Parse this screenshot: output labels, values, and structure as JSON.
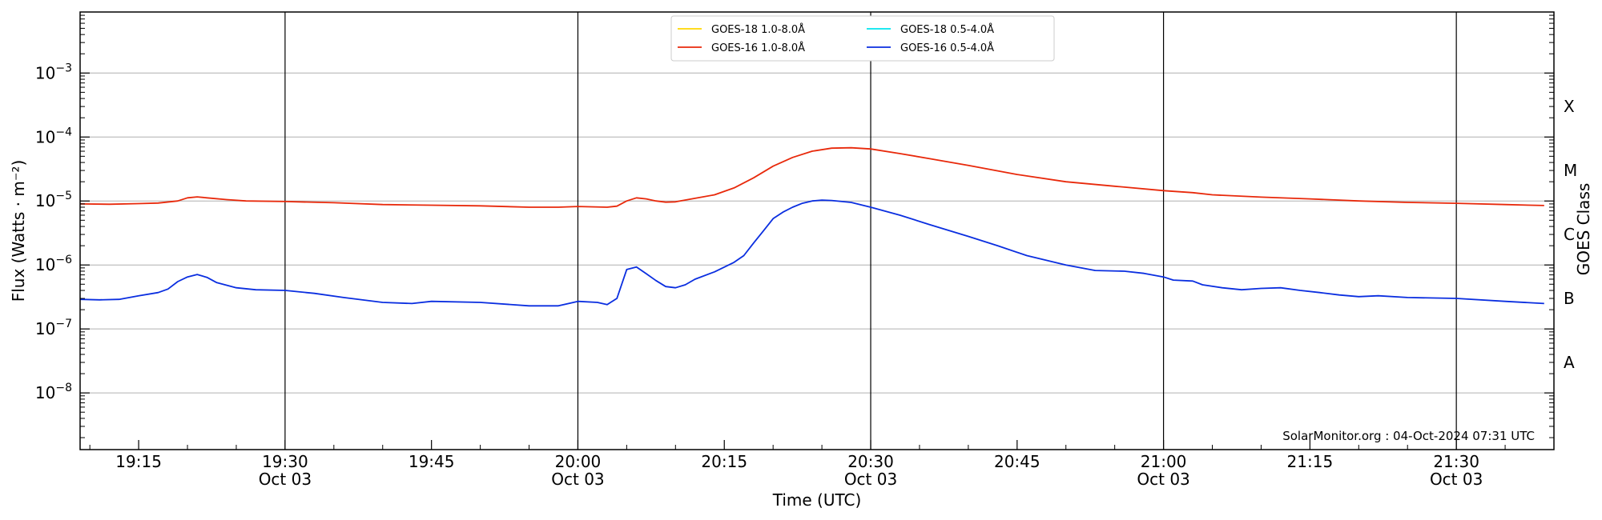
{
  "chart_data": {
    "type": "line",
    "xlabel": "Time (UTC)",
    "ylabel": "Flux (Watts · m⁻²)",
    "ylabel_right": "GOES Class",
    "yscale": "log",
    "ylim": [
      1.3e-09,
      0.009
    ],
    "xlim": [
      "2024-10-03 19:09",
      "2024-10-03 21:40"
    ],
    "grid": "horizontal at decades; vertical lines at half hours",
    "legend_position": "top-center",
    "credit": "SolarMonitor.org : 04-Oct-2024 07:31 UTC",
    "y_ticks": [
      {
        "value": 1e-08,
        "base": "10",
        "exp": "−8"
      },
      {
        "value": 1e-07,
        "base": "10",
        "exp": "−7"
      },
      {
        "value": 1e-06,
        "base": "10",
        "exp": "−6"
      },
      {
        "value": 1e-05,
        "base": "10",
        "exp": "−5"
      },
      {
        "value": 0.0001,
        "base": "10",
        "exp": "−4"
      },
      {
        "value": 0.001,
        "base": "10",
        "exp": "−3"
      }
    ],
    "x_ticks": [
      {
        "time": "19:15",
        "label": "19:15",
        "date": ""
      },
      {
        "time": "19:30",
        "label": "19:30",
        "date": "Oct 03"
      },
      {
        "time": "19:45",
        "label": "19:45",
        "date": ""
      },
      {
        "time": "20:00",
        "label": "20:00",
        "date": "Oct 03"
      },
      {
        "time": "20:15",
        "label": "20:15",
        "date": ""
      },
      {
        "time": "20:30",
        "label": "20:30",
        "date": "Oct 03"
      },
      {
        "time": "20:45",
        "label": "20:45",
        "date": ""
      },
      {
        "time": "21:00",
        "label": "21:00",
        "date": "Oct 03"
      },
      {
        "time": "21:15",
        "label": "21:15",
        "date": ""
      },
      {
        "time": "21:30",
        "label": "21:30",
        "date": "Oct 03"
      }
    ],
    "class_labels": [
      {
        "label": "A",
        "value": 3e-08
      },
      {
        "label": "B",
        "value": 3e-07
      },
      {
        "label": "C",
        "value": 3e-06
      },
      {
        "label": "M",
        "value": 3e-05
      },
      {
        "label": "X",
        "value": 0.0003
      }
    ],
    "series": [
      {
        "name": "GOES-18 1.0-8.0Å",
        "color": "#ffd700",
        "points": []
      },
      {
        "name": "GOES-18 0.5-4.0Å",
        "color": "#00e5ee",
        "points": []
      },
      {
        "name": "GOES-16 1.0-8.0Å",
        "color": "#e8290b",
        "points": [
          [
            "19:09",
            9e-06
          ],
          [
            "19:12",
            8.9e-06
          ],
          [
            "19:15",
            9.1e-06
          ],
          [
            "19:17",
            9.3e-06
          ],
          [
            "19:19",
            1e-05
          ],
          [
            "19:20",
            1.12e-05
          ],
          [
            "19:21",
            1.16e-05
          ],
          [
            "19:22",
            1.12e-05
          ],
          [
            "19:24",
            1.05e-05
          ],
          [
            "19:26",
            1e-05
          ],
          [
            "19:30",
            9.8e-06
          ],
          [
            "19:35",
            9.4e-06
          ],
          [
            "19:40",
            8.8e-06
          ],
          [
            "19:45",
            8.6e-06
          ],
          [
            "19:50",
            8.4e-06
          ],
          [
            "19:55",
            8e-06
          ],
          [
            "19:58",
            8e-06
          ],
          [
            "20:00",
            8.2e-06
          ],
          [
            "20:03",
            8e-06
          ],
          [
            "20:04",
            8.3e-06
          ],
          [
            "20:05",
            1e-05
          ],
          [
            "20:06",
            1.12e-05
          ],
          [
            "20:07",
            1.08e-05
          ],
          [
            "20:08",
            1e-05
          ],
          [
            "20:09",
            9.6e-06
          ],
          [
            "20:10",
            9.7e-06
          ],
          [
            "20:12",
            1.1e-05
          ],
          [
            "20:14",
            1.25e-05
          ],
          [
            "20:16",
            1.6e-05
          ],
          [
            "20:18",
            2.3e-05
          ],
          [
            "20:20",
            3.5e-05
          ],
          [
            "20:22",
            4.8e-05
          ],
          [
            "20:24",
            6e-05
          ],
          [
            "20:26",
            6.7e-05
          ],
          [
            "20:28",
            6.8e-05
          ],
          [
            "20:30",
            6.5e-05
          ],
          [
            "20:33",
            5.5e-05
          ],
          [
            "20:36",
            4.6e-05
          ],
          [
            "20:40",
            3.6e-05
          ],
          [
            "20:45",
            2.6e-05
          ],
          [
            "20:50",
            2e-05
          ],
          [
            "20:55",
            1.7e-05
          ],
          [
            "21:00",
            1.45e-05
          ],
          [
            "21:03",
            1.35e-05
          ],
          [
            "21:05",
            1.25e-05
          ],
          [
            "21:10",
            1.15e-05
          ],
          [
            "21:15",
            1.08e-05
          ],
          [
            "21:20",
            1e-05
          ],
          [
            "21:25",
            9.5e-06
          ],
          [
            "21:30",
            9.2e-06
          ],
          [
            "21:35",
            8.8e-06
          ],
          [
            "21:39",
            8.5e-06
          ]
        ]
      },
      {
        "name": "GOES-16 0.5-4.0Å",
        "color": "#0a2ee0",
        "points": [
          [
            "19:09",
            2.9e-07
          ],
          [
            "19:11",
            2.85e-07
          ],
          [
            "19:13",
            2.9e-07
          ],
          [
            "19:15",
            3.3e-07
          ],
          [
            "19:17",
            3.7e-07
          ],
          [
            "19:18",
            4.2e-07
          ],
          [
            "19:19",
            5.5e-07
          ],
          [
            "19:20",
            6.5e-07
          ],
          [
            "19:21",
            7.1e-07
          ],
          [
            "19:22",
            6.4e-07
          ],
          [
            "19:23",
            5.3e-07
          ],
          [
            "19:25",
            4.4e-07
          ],
          [
            "19:27",
            4.1e-07
          ],
          [
            "19:30",
            4e-07
          ],
          [
            "19:33",
            3.6e-07
          ],
          [
            "19:36",
            3.1e-07
          ],
          [
            "19:40",
            2.6e-07
          ],
          [
            "19:43",
            2.5e-07
          ],
          [
            "19:45",
            2.7e-07
          ],
          [
            "19:50",
            2.6e-07
          ],
          [
            "19:55",
            2.3e-07
          ],
          [
            "19:58",
            2.3e-07
          ],
          [
            "20:00",
            2.7e-07
          ],
          [
            "20:02",
            2.6e-07
          ],
          [
            "20:03",
            2.4e-07
          ],
          [
            "20:04",
            3e-07
          ],
          [
            "20:05",
            8.5e-07
          ],
          [
            "20:06",
            9.3e-07
          ],
          [
            "20:07",
            7.3e-07
          ],
          [
            "20:08",
            5.7e-07
          ],
          [
            "20:09",
            4.6e-07
          ],
          [
            "20:10",
            4.4e-07
          ],
          [
            "20:11",
            4.9e-07
          ],
          [
            "20:12",
            6e-07
          ],
          [
            "20:14",
            7.8e-07
          ],
          [
            "20:16",
            1.1e-06
          ],
          [
            "20:17",
            1.4e-06
          ],
          [
            "20:18",
            2.2e-06
          ],
          [
            "20:19",
            3.4e-06
          ],
          [
            "20:20",
            5.3e-06
          ],
          [
            "20:21",
            6.7e-06
          ],
          [
            "20:22",
            8e-06
          ],
          [
            "20:23",
            9.2e-06
          ],
          [
            "20:24",
            1e-05
          ],
          [
            "20:25",
            1.03e-05
          ],
          [
            "20:26",
            1.02e-05
          ],
          [
            "20:28",
            9.5e-06
          ],
          [
            "20:30",
            8e-06
          ],
          [
            "20:33",
            6e-06
          ],
          [
            "20:36",
            4.3e-06
          ],
          [
            "20:40",
            2.8e-06
          ],
          [
            "20:43",
            2e-06
          ],
          [
            "20:46",
            1.4e-06
          ],
          [
            "20:50",
            1e-06
          ],
          [
            "20:53",
            8.2e-07
          ],
          [
            "20:56",
            8e-07
          ],
          [
            "20:58",
            7.4e-07
          ],
          [
            "21:00",
            6.5e-07
          ],
          [
            "21:01",
            5.8e-07
          ],
          [
            "21:03",
            5.6e-07
          ],
          [
            "21:04",
            4.9e-07
          ],
          [
            "21:06",
            4.4e-07
          ],
          [
            "21:08",
            4.1e-07
          ],
          [
            "21:10",
            4.3e-07
          ],
          [
            "21:12",
            4.4e-07
          ],
          [
            "21:14",
            4e-07
          ],
          [
            "21:16",
            3.7e-07
          ],
          [
            "21:18",
            3.4e-07
          ],
          [
            "21:20",
            3.2e-07
          ],
          [
            "21:22",
            3.3e-07
          ],
          [
            "21:25",
            3.1e-07
          ],
          [
            "21:30",
            3e-07
          ],
          [
            "21:35",
            2.7e-07
          ],
          [
            "21:39",
            2.5e-07
          ]
        ]
      }
    ]
  }
}
